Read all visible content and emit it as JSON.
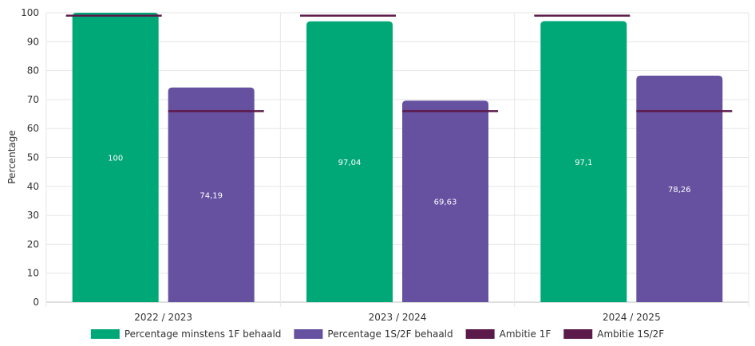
{
  "chart_data": {
    "type": "bar",
    "categories": [
      "2022 / 2023",
      "2023 / 2024",
      "2024 / 2025"
    ],
    "ylabel": "Percentage",
    "ylim": [
      0,
      100
    ],
    "yticks": [
      0,
      10,
      20,
      30,
      40,
      50,
      60,
      70,
      80,
      90,
      100
    ],
    "grid": true,
    "legend_placement": "bottom",
    "series": [
      {
        "name": "Percentage minstens 1F behaald",
        "kind": "bar",
        "color": "#00a877",
        "values": [
          100,
          97.04,
          97.1
        ],
        "labels": [
          "100",
          "97,04",
          "97,1"
        ]
      },
      {
        "name": "Percentage 1S/2F behaald",
        "kind": "bar",
        "color": "#6651a0",
        "values": [
          74.19,
          69.63,
          78.26
        ],
        "labels": [
          "74,19",
          "69,63",
          "78,26"
        ]
      }
    ],
    "targets": [
      {
        "name": "Ambitie 1F",
        "kind": "target-line",
        "color": "#5c1a4a",
        "values": [
          99,
          99,
          99
        ]
      },
      {
        "name": "Ambitie 1S/2F",
        "kind": "target-line",
        "color": "#5c1a4a",
        "values": [
          66,
          66,
          66
        ]
      }
    ]
  }
}
